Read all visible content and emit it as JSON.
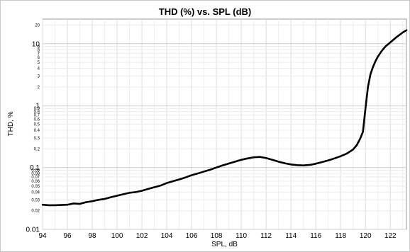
{
  "chart_data": {
    "type": "line",
    "title": "THD (%) vs. SPL (dB)",
    "xlabel": "SPL, dB",
    "ylabel": "THD, %",
    "xscale": "linear",
    "yscale": "log",
    "xlim": [
      94,
      123.3
    ],
    "ylim": [
      0.01,
      25
    ],
    "grid": true,
    "line_color": "#000000",
    "x_ticks": [
      "94",
      "96",
      "98",
      "100",
      "102",
      "104",
      "106",
      "108",
      "110",
      "112",
      "114",
      "116",
      "118",
      "120",
      "122"
    ],
    "y_ticks_major": [
      "0.01",
      "0.1",
      "1",
      "10"
    ],
    "y_ticks_minor": [
      "0.02",
      "0.03",
      "0.04",
      "0.05",
      "0.06",
      "0.07",
      "0.08",
      "0.09",
      "0.2",
      "0.3",
      "0.4",
      "0.5",
      "0.6",
      "0.7",
      "0.8",
      "0.9",
      "2",
      "3",
      "4",
      "5",
      "6",
      "7",
      "8",
      "9",
      "20"
    ],
    "series": [
      {
        "x": [
          94,
          94.5,
          95,
          95.5,
          96,
          96.5,
          97,
          97.5,
          98,
          98.5,
          99,
          99.5,
          100,
          100.5,
          101,
          101.5,
          102,
          102.5,
          103,
          103.5,
          104,
          104.5,
          105,
          105.5,
          106,
          106.5,
          107,
          107.5,
          108,
          108.5,
          109,
          109.5,
          110,
          110.5,
          111,
          111.5,
          112,
          112.5,
          113,
          113.5,
          114,
          114.5,
          115,
          115.5,
          116,
          116.5,
          117,
          117.5,
          118,
          118.5,
          119,
          119.3,
          119.6,
          119.8,
          120,
          120.2,
          120.4,
          120.6,
          120.8,
          121,
          121.3,
          121.6,
          122,
          122.5,
          123,
          123.3
        ],
        "y": [
          0.025,
          0.0245,
          0.0245,
          0.0248,
          0.025,
          0.0262,
          0.0258,
          0.0275,
          0.0285,
          0.03,
          0.031,
          0.033,
          0.035,
          0.037,
          0.039,
          0.04,
          0.042,
          0.045,
          0.048,
          0.051,
          0.056,
          0.06,
          0.064,
          0.069,
          0.075,
          0.08,
          0.086,
          0.092,
          0.1,
          0.108,
          0.116,
          0.124,
          0.133,
          0.14,
          0.146,
          0.148,
          0.142,
          0.133,
          0.124,
          0.117,
          0.112,
          0.109,
          0.108,
          0.11,
          0.115,
          0.122,
          0.13,
          0.14,
          0.152,
          0.168,
          0.195,
          0.23,
          0.3,
          0.38,
          0.9,
          2.0,
          3.2,
          4.2,
          5.2,
          6.2,
          7.6,
          9.0,
          10.5,
          12.8,
          15.2,
          16.5
        ]
      }
    ]
  }
}
